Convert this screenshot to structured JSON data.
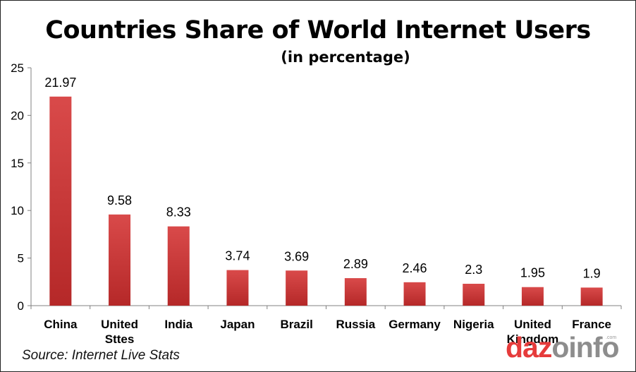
{
  "chart_data": {
    "type": "bar",
    "title": "Countries Share of World Internet Users",
    "subtitle": "(in percentage)",
    "categories": [
      "China",
      "United Sttes",
      "India",
      "Japan",
      "Brazil",
      "Russia",
      "Germany",
      "Nigeria",
      "United Kingdom",
      "France"
    ],
    "category_lines": [
      [
        "China"
      ],
      [
        "United",
        "Sttes"
      ],
      [
        "India"
      ],
      [
        "Japan"
      ],
      [
        "Brazil"
      ],
      [
        "Russia"
      ],
      [
        "Germany"
      ],
      [
        "Nigeria"
      ],
      [
        "United",
        "Kingdom"
      ],
      [
        "France"
      ]
    ],
    "values": [
      21.97,
      9.58,
      8.33,
      3.74,
      3.69,
      2.89,
      2.46,
      2.3,
      1.95,
      1.9
    ],
    "value_labels": [
      "21.97",
      "9.58",
      "8.33",
      "3.74",
      "3.69",
      "2.89",
      "2.46",
      "2.3",
      "1.95",
      "1.9"
    ],
    "yticks": [
      "0",
      "5",
      "10",
      "15",
      "20",
      "25"
    ],
    "ylim": [
      0,
      25
    ],
    "xlabel": "",
    "ylabel": "",
    "grid": false,
    "legend": "none",
    "bar_color_top": "#d94a4a",
    "bar_color_bottom": "#b52828"
  },
  "source": "Source: Internet Live Stats",
  "logo": {
    "text_d1": "daz",
    "text_o": "o",
    "text_g": "info",
    "dot_com": ".com",
    "brand_red": "#e63b3b",
    "brand_gray": "#8d8d8d"
  }
}
